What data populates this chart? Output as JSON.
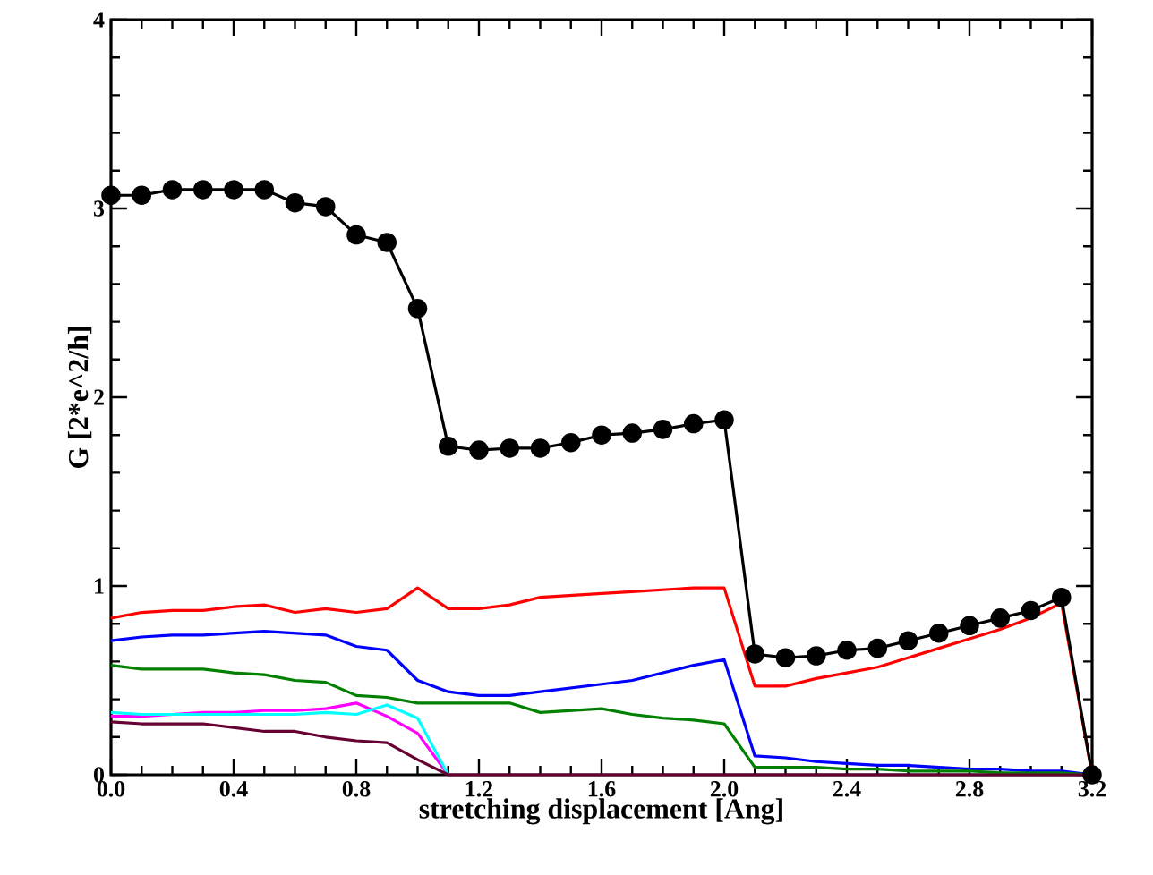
{
  "chart_data": {
    "type": "line",
    "xlabel": "stretching displacement  [Ang]",
    "ylabel": "G [2*e^2/h]",
    "x": [
      0.0,
      0.1,
      0.2,
      0.3,
      0.4,
      0.5,
      0.6,
      0.7,
      0.8,
      0.9,
      1.0,
      1.1,
      1.2,
      1.3,
      1.4,
      1.5,
      1.6,
      1.7,
      1.8,
      1.9,
      2.0,
      2.1,
      2.2,
      2.3,
      2.4,
      2.5,
      2.6,
      2.7,
      2.8,
      2.9,
      3.0,
      3.1,
      3.2
    ],
    "xlim": [
      0,
      3.2
    ],
    "ylim": [
      0,
      4
    ],
    "xticks": [
      {
        "value": 0,
        "label": "0.0"
      },
      {
        "value": 0.4,
        "label": "0.4"
      },
      {
        "value": 0.8,
        "label": "0.8"
      },
      {
        "value": 1.2,
        "label": "1.2"
      },
      {
        "value": 1.6,
        "label": "1.6"
      },
      {
        "value": 2.0,
        "label": "2.0"
      },
      {
        "value": 2.4,
        "label": "2.4"
      },
      {
        "value": 2.8,
        "label": "2.8"
      },
      {
        "value": 3.2,
        "label": "3.2"
      }
    ],
    "yticks": [
      0,
      1,
      2,
      3,
      4
    ],
    "line_style": "solid",
    "series": [
      {
        "color": "#000000",
        "marker": "circle",
        "values": [
          3.07,
          3.07,
          3.1,
          3.1,
          3.1,
          3.1,
          3.03,
          3.01,
          2.86,
          2.82,
          2.47,
          1.74,
          1.72,
          1.73,
          1.73,
          1.76,
          1.8,
          1.81,
          1.83,
          1.86,
          1.88,
          0.64,
          0.62,
          0.63,
          0.66,
          0.67,
          0.71,
          0.75,
          0.79,
          0.83,
          0.87,
          0.94,
          0.0
        ]
      },
      {
        "color": "#ff0000",
        "marker": "none",
        "values": [
          0.83,
          0.86,
          0.87,
          0.87,
          0.89,
          0.9,
          0.86,
          0.88,
          0.86,
          0.88,
          0.99,
          0.88,
          0.88,
          0.9,
          0.94,
          0.95,
          0.96,
          0.97,
          0.98,
          0.99,
          0.99,
          0.47,
          0.47,
          0.51,
          0.54,
          0.57,
          0.62,
          0.67,
          0.72,
          0.77,
          0.83,
          0.91,
          0.0
        ]
      },
      {
        "color": "#0000ff",
        "marker": "none",
        "values": [
          0.71,
          0.73,
          0.74,
          0.74,
          0.75,
          0.76,
          0.75,
          0.74,
          0.68,
          0.66,
          0.5,
          0.44,
          0.42,
          0.42,
          0.44,
          0.46,
          0.48,
          0.5,
          0.54,
          0.58,
          0.61,
          0.1,
          0.09,
          0.07,
          0.06,
          0.05,
          0.05,
          0.04,
          0.03,
          0.03,
          0.02,
          0.02,
          0.0
        ]
      },
      {
        "color": "#008000",
        "marker": "none",
        "values": [
          0.58,
          0.56,
          0.56,
          0.56,
          0.54,
          0.53,
          0.5,
          0.49,
          0.42,
          0.41,
          0.38,
          0.38,
          0.38,
          0.38,
          0.33,
          0.34,
          0.35,
          0.32,
          0.3,
          0.29,
          0.27,
          0.04,
          0.04,
          0.04,
          0.03,
          0.03,
          0.02,
          0.02,
          0.02,
          0.01,
          0.01,
          0.01,
          0.0
        ]
      },
      {
        "color": "#ff00ff",
        "marker": "none",
        "values": [
          0.31,
          0.31,
          0.32,
          0.33,
          0.33,
          0.34,
          0.34,
          0.35,
          0.38,
          0.31,
          0.22,
          0.0,
          null,
          null,
          null,
          null,
          null,
          null,
          null,
          null,
          null,
          null,
          null,
          null,
          null,
          null,
          null,
          null,
          null,
          null,
          null,
          null,
          null
        ]
      },
      {
        "color": "#00ffff",
        "marker": "none",
        "values": [
          0.33,
          0.32,
          0.32,
          0.32,
          0.32,
          0.32,
          0.32,
          0.33,
          0.32,
          0.37,
          0.3,
          0.0,
          null,
          null,
          null,
          null,
          null,
          null,
          null,
          null,
          null,
          null,
          null,
          null,
          null,
          null,
          null,
          null,
          null,
          null,
          null,
          null,
          null
        ]
      },
      {
        "color": "#660033",
        "marker": "none",
        "values": [
          0.28,
          0.27,
          0.27,
          0.27,
          0.25,
          0.23,
          0.23,
          0.2,
          0.18,
          0.17,
          0.08,
          0.0,
          0.0,
          0.0,
          0.0,
          0.0,
          0.0,
          0.0,
          0.0,
          0.0,
          0.0,
          0.0,
          0.0,
          0.0,
          0.0,
          0.0,
          0.0,
          0.0,
          0.0,
          0.0,
          0.0,
          0.0,
          0.0
        ]
      }
    ]
  }
}
